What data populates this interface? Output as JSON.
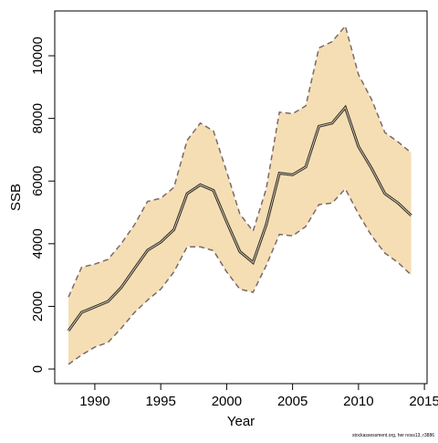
{
  "chart_data": {
    "type": "line",
    "x_label": "Year",
    "y_label": "SSB",
    "caption": "stockassessment.org, her noss13, r3886",
    "x": [
      1988,
      1989,
      1990,
      1991,
      1992,
      1993,
      1994,
      1995,
      1996,
      1997,
      1998,
      1999,
      2000,
      2001,
      2002,
      2003,
      2004,
      2005,
      2006,
      2007,
      2008,
      2009,
      2010,
      2011,
      2012,
      2013,
      2014
    ],
    "series": [
      {
        "color": "#333333",
        "values": [
          1224,
          1808,
          1983,
          2157,
          2600,
          3200,
          3790,
          4050,
          4450,
          5600,
          5880,
          5700,
          4700,
          3750,
          3400,
          4600,
          6250,
          6200,
          6450,
          7750,
          7850,
          8350,
          7100,
          6400,
          5600,
          5300,
          4900
        ]
      }
    ],
    "band": {
      "color": "#f5deb3",
      "line_color": "#7a6a6a",
      "upper": [
        2300,
        3250,
        3350,
        3500,
        4000,
        4600,
        5350,
        5450,
        5800,
        7300,
        7850,
        7600,
        6300,
        4950,
        4400,
        5750,
        8200,
        8150,
        8400,
        10250,
        10450,
        10950,
        9400,
        8600,
        7550,
        7250,
        6900
      ],
      "lower": [
        150,
        450,
        700,
        850,
        1300,
        1800,
        2200,
        2550,
        3100,
        3900,
        3900,
        3780,
        3100,
        2550,
        2450,
        3300,
        4300,
        4250,
        4550,
        5250,
        5300,
        5750,
        4950,
        4250,
        3700,
        3400,
        3000
      ]
    },
    "xlim": [
      1986.96,
      2015.2
    ],
    "xticks": [
      1990,
      1995,
      2000,
      2005,
      2010,
      2015
    ],
    "ylim": [
      -466,
      11430
    ],
    "yticks": [
      0,
      2000,
      4000,
      6000,
      8000,
      10000
    ]
  }
}
